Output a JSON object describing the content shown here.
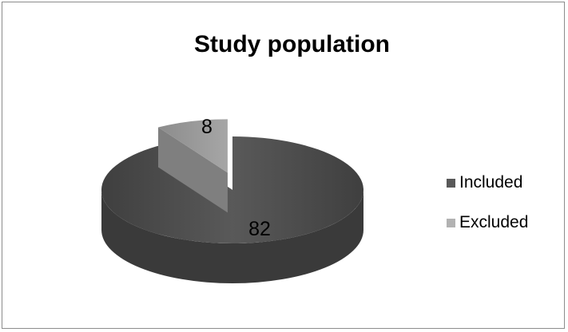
{
  "chart_data": {
    "type": "pie",
    "title": "Study population",
    "slices": [
      {
        "label": "Included",
        "value": 82,
        "color": "#595959"
      },
      {
        "label": "Excluded",
        "value": 8,
        "color": "#b2b2b2"
      }
    ],
    "data_labels_shown": true,
    "legend_position": "right",
    "style": "3d-exploded"
  }
}
